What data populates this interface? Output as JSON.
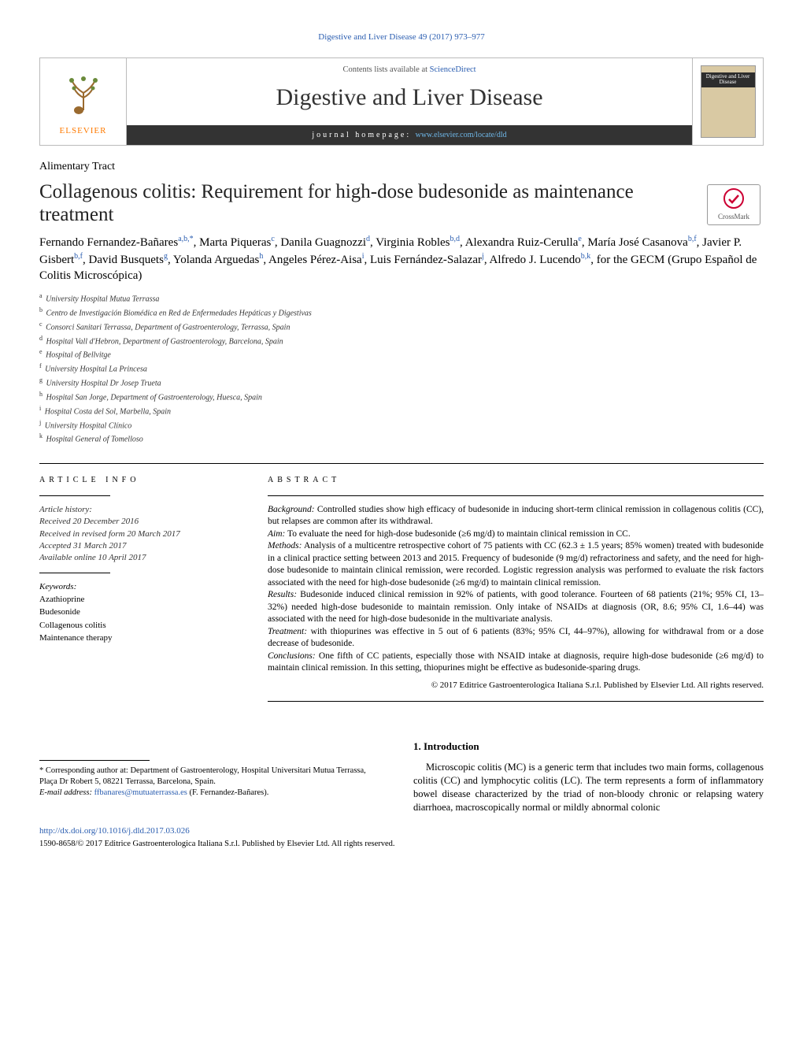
{
  "running_head": "Digestive and Liver Disease 49 (2017) 973–977",
  "masthead": {
    "contents_line_pre": "Contents lists available at ",
    "contents_link": "ScienceDirect",
    "journal_name": "Digestive and Liver Disease",
    "homepage_label": "journal homepage: ",
    "homepage_url": "www.elsevier.com/locate/dld",
    "publisher_word": "ELSEVIER",
    "cover_text": "Digestive\nand Liver\nDisease"
  },
  "section_label": "Alimentary Tract",
  "title": "Collagenous colitis: Requirement for high-dose budesonide as maintenance treatment",
  "crossmark_label": "CrossMark",
  "authors_html": "Fernando Fernandez-Bañares|a,b,*|, Marta Piqueras|c|, Danila Guagnozzi|d|, Virginia Robles|b,d|, Alexandra Ruiz-Cerulla|e|, María José Casanova|b,f|, Javier P. Gisbert|b,f|, David Busquets|g|, Yolanda Arguedas|h|, Angeles Pérez-Aisa|i|, Luis Fernández-Salazar|j|, Alfredo J. Lucendo|b,k|, for the GECM (Grupo Español de Colitis Microscópica)",
  "affiliations": [
    {
      "key": "a",
      "text": "University Hospital Mutua Terrassa"
    },
    {
      "key": "b",
      "text": "Centro de Investigación Biomédica en Red de Enfermedades Hepáticas y Digestivas"
    },
    {
      "key": "c",
      "text": "Consorci Sanitari Terrassa, Department of Gastroenterology, Terrassa, Spain"
    },
    {
      "key": "d",
      "text": "Hospital Vall d'Hebron, Department of Gastroenterology, Barcelona, Spain"
    },
    {
      "key": "e",
      "text": "Hospital of Bellvitge"
    },
    {
      "key": "f",
      "text": "University Hospital La Princesa"
    },
    {
      "key": "g",
      "text": "University Hospital Dr Josep Trueta"
    },
    {
      "key": "h",
      "text": "Hospital San Jorge, Department of Gastroenterology, Huesca, Spain"
    },
    {
      "key": "i",
      "text": "Hospital Costa del Sol, Marbella, Spain"
    },
    {
      "key": "j",
      "text": "University Hospital Clínico"
    },
    {
      "key": "k",
      "text": "Hospital General of Tomelloso"
    }
  ],
  "article_info": {
    "head": "ARTICLE INFO",
    "history_label": "Article history:",
    "history": [
      "Received 20 December 2016",
      "Received in revised form 20 March 2017",
      "Accepted 31 March 2017",
      "Available online 10 April 2017"
    ],
    "keywords_label": "Keywords:",
    "keywords": [
      "Azathioprine",
      "Budesonide",
      "Collagenous colitis",
      "Maintenance therapy"
    ]
  },
  "abstract": {
    "head": "ABSTRACT",
    "background_label": "Background:",
    "background": " Controlled studies show high efficacy of budesonide in inducing short-term clinical remission in collagenous colitis (CC), but relapses are common after its withdrawal.",
    "aim_label": "Aim:",
    "aim": " To evaluate the need for high-dose budesonide (≥6 mg/d) to maintain clinical remission in CC.",
    "methods_label": "Methods:",
    "methods": " Analysis of a multicentre retrospective cohort of 75 patients with CC (62.3 ± 1.5 years; 85% women) treated with budesonide in a clinical practice setting between 2013 and 2015. Frequency of budesonide (9 mg/d) refractoriness and safety, and the need for high-dose budesonide to maintain clinical remission, were recorded. Logistic regression analysis was performed to evaluate the risk factors associated with the need for high-dose budesonide (≥6 mg/d) to maintain clinical remission.",
    "results_label": "Results:",
    "results": " Budesonide induced clinical remission in 92% of patients, with good tolerance. Fourteen of 68 patients (21%; 95% CI, 13–32%) needed high-dose budesonide to maintain remission. Only intake of NSAIDs at diagnosis (OR, 8.6; 95% CI, 1.6–44) was associated with the need for high-dose budesonide in the multivariate analysis.",
    "treatment_label": "Treatment:",
    "treatment": " with thiopurines was effective in 5 out of 6 patients (83%; 95% CI, 44–97%), allowing for withdrawal from or a dose decrease of budesonide.",
    "conclusions_label": "Conclusions:",
    "conclusions": " One fifth of CC patients, especially those with NSAID intake at diagnosis, require high-dose budesonide (≥6 mg/d) to maintain clinical remission. In this setting, thiopurines might be effective as budesonide-sparing drugs.",
    "copyright": "© 2017 Editrice Gastroenterologica Italiana S.r.l. Published by Elsevier Ltd. All rights reserved."
  },
  "intro": {
    "head": "1.  Introduction",
    "body": "Microscopic colitis (MC) is a generic term that includes two main forms, collagenous colitis (CC) and lymphocytic colitis (LC). The term represents a form of inflammatory bowel disease characterized by the triad of non-bloody chronic or relapsing watery diarrhoea, macroscopically normal or mildly abnormal colonic"
  },
  "footnote": {
    "corr": "* Corresponding author at: Department of Gastroenterology, Hospital Universitari Mutua Terrassa, Plaça Dr Robert 5, 08221 Terrassa, Barcelona, Spain.",
    "email_label": "E-mail address: ",
    "email": "ffbanares@mutuaterrassa.es",
    "email_tail": " (F. Fernandez-Bañares)."
  },
  "doi": {
    "url": "http://dx.doi.org/10.1016/j.dld.2017.03.026",
    "issn": "1590-8658/© 2017 Editrice Gastroenterologica Italiana S.r.l. Published by Elsevier Ltd. All rights reserved."
  },
  "colors": {
    "link": "#2a5db0",
    "orange": "#ff7a00",
    "darkbar": "#333333"
  }
}
